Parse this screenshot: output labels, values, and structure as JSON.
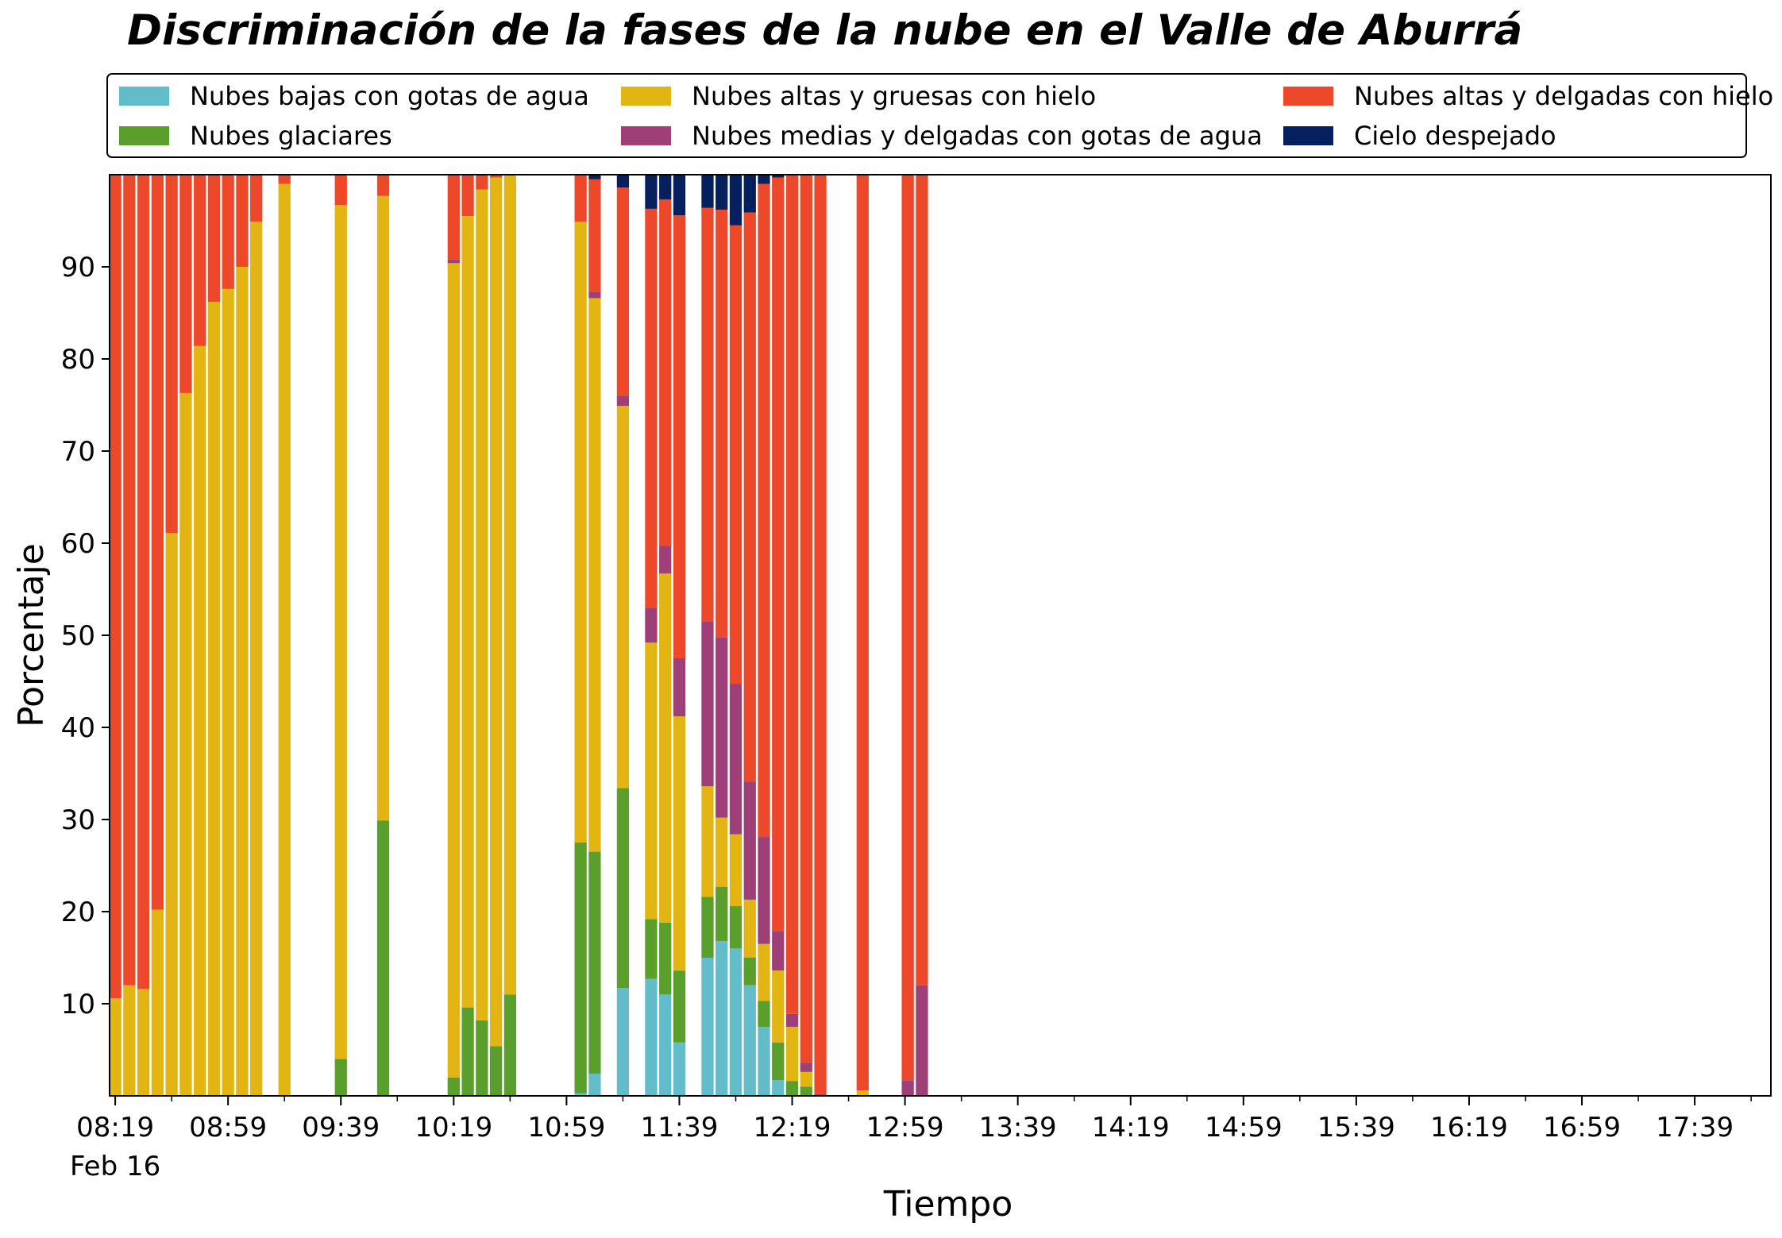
{
  "title": "Discriminación de la fases de la nube en el Valle de Aburrá",
  "colors": {
    "Nubes bajas con gotas de agua": "#62bcc9",
    "Nubes glaciares": "#5a9e2b",
    "Nubes altas y gruesas con hielo": "#e2b512",
    "Nubes medias y delgadas con gotas de agua": "#9e3f78",
    "Nubes altas y delgadas con hielo": "#ee482a",
    "Cielo despejado": "#06205e"
  },
  "chart_data": {
    "type": "bar",
    "stacked": true,
    "xlabel": "Tiempo",
    "ylabel": "Porcentaje",
    "ylim": [
      0,
      100
    ],
    "yticks": [
      10,
      20,
      30,
      40,
      50,
      60,
      70,
      80,
      90
    ],
    "date_label": "Feb 16",
    "xtick_labels": [
      "08:19",
      "08:59",
      "09:39",
      "10:19",
      "10:59",
      "11:39",
      "12:19",
      "12:59",
      "13:39",
      "14:19",
      "14:59",
      "15:39",
      "16:19",
      "16:59",
      "17:39"
    ],
    "xtick_times": [
      "08:19",
      "08:59",
      "09:39",
      "10:19",
      "10:59",
      "11:39",
      "12:19",
      "12:59",
      "13:39",
      "14:19",
      "14:59",
      "15:39",
      "16:19",
      "16:59",
      "17:39"
    ],
    "minor_tick_times": [
      "08:39",
      "09:19",
      "09:59",
      "10:39",
      "11:19",
      "11:59",
      "12:39",
      "13:19",
      "13:59",
      "14:39",
      "15:19",
      "15:59",
      "16:39",
      "17:19",
      "17:59"
    ],
    "x_start": "08:17",
    "x_end": "18:06",
    "legend_placement": "top, above plot, 3 columns",
    "series_order": [
      "Nubes bajas con gotas de agua",
      "Nubes glaciares",
      "Nubes altas y gruesas con hielo",
      "Nubes medias y delgadas con gotas de agua",
      "Nubes altas y delgadas con hielo",
      "Cielo despejado"
    ],
    "bars": [
      {
        "time": "08:19",
        "values": [
          0,
          0,
          10.6,
          0,
          89.4,
          0
        ]
      },
      {
        "time": "08:24",
        "values": [
          0,
          0,
          12.0,
          0,
          88.0,
          0
        ]
      },
      {
        "time": "08:29",
        "values": [
          0,
          0,
          11.6,
          0,
          88.4,
          0
        ]
      },
      {
        "time": "08:34",
        "values": [
          0,
          0,
          20.2,
          0,
          79.8,
          0
        ]
      },
      {
        "time": "08:39",
        "values": [
          0,
          0,
          61.1,
          0,
          38.9,
          0
        ]
      },
      {
        "time": "08:44",
        "values": [
          0,
          0,
          76.3,
          0,
          23.7,
          0
        ]
      },
      {
        "time": "08:49",
        "values": [
          0,
          0,
          81.4,
          0,
          18.6,
          0
        ]
      },
      {
        "time": "08:54",
        "values": [
          0,
          0,
          86.2,
          0,
          13.8,
          0
        ]
      },
      {
        "time": "08:59",
        "values": [
          0,
          0,
          87.6,
          0,
          12.4,
          0
        ]
      },
      {
        "time": "09:04",
        "values": [
          0,
          0,
          90.0,
          0,
          10.0,
          0
        ]
      },
      {
        "time": "09:09",
        "values": [
          0,
          0,
          94.9,
          0,
          5.1,
          0
        ]
      },
      {
        "time": "09:19",
        "values": [
          0,
          0,
          99.0,
          0,
          1.0,
          0
        ]
      },
      {
        "time": "09:39",
        "values": [
          0,
          4.0,
          92.7,
          0,
          3.3,
          0
        ]
      },
      {
        "time": "09:54",
        "values": [
          0,
          29.9,
          67.8,
          0,
          2.3,
          0
        ]
      },
      {
        "time": "10:19",
        "values": [
          0,
          2.0,
          88.4,
          0.4,
          9.2,
          0
        ]
      },
      {
        "time": "10:24",
        "values": [
          0,
          9.6,
          85.9,
          0,
          4.5,
          0
        ]
      },
      {
        "time": "10:29",
        "values": [
          0,
          8.2,
          90.2,
          0,
          1.6,
          0
        ]
      },
      {
        "time": "10:34",
        "values": [
          0,
          5.4,
          94.3,
          0,
          0.3,
          0
        ]
      },
      {
        "time": "10:39",
        "values": [
          0,
          11.0,
          89.0,
          0,
          0,
          0
        ]
      },
      {
        "time": "11:04",
        "values": [
          0.3,
          27.2,
          67.4,
          0,
          5.1,
          0
        ]
      },
      {
        "time": "11:09",
        "values": [
          2.4,
          24.1,
          60.1,
          0.7,
          12.2,
          0.5
        ]
      },
      {
        "time": "11:19",
        "values": [
          11.7,
          21.7,
          41.5,
          1.1,
          22.6,
          1.4
        ]
      },
      {
        "time": "11:29",
        "values": [
          12.7,
          6.5,
          30.0,
          3.8,
          43.3,
          3.7
        ]
      },
      {
        "time": "11:34",
        "values": [
          11.0,
          7.8,
          37.9,
          3.0,
          37.6,
          2.7
        ]
      },
      {
        "time": "11:39",
        "values": [
          5.8,
          7.8,
          27.6,
          6.3,
          48.1,
          4.4
        ]
      },
      {
        "time": "11:49",
        "values": [
          15.0,
          6.6,
          12.0,
          17.9,
          44.9,
          3.6
        ]
      },
      {
        "time": "11:54",
        "values": [
          16.8,
          5.9,
          7.5,
          19.6,
          46.4,
          3.8
        ]
      },
      {
        "time": "11:59",
        "values": [
          16.0,
          4.6,
          7.8,
          16.3,
          49.8,
          5.5
        ]
      },
      {
        "time": "12:04",
        "values": [
          12.0,
          3.0,
          6.3,
          12.8,
          61.8,
          4.1
        ]
      },
      {
        "time": "12:09",
        "values": [
          7.5,
          2.8,
          6.2,
          11.6,
          70.9,
          1.0
        ]
      },
      {
        "time": "12:14",
        "values": [
          1.7,
          4.1,
          7.8,
          4.3,
          81.8,
          0.3
        ]
      },
      {
        "time": "12:19",
        "values": [
          0,
          1.6,
          5.9,
          1.4,
          91.1,
          0
        ]
      },
      {
        "time": "12:24",
        "values": [
          0,
          1.0,
          1.6,
          1.0,
          96.4,
          0
        ]
      },
      {
        "time": "12:29",
        "values": [
          0,
          0,
          0,
          0.2,
          99.8,
          0
        ]
      },
      {
        "time": "12:44",
        "values": [
          0,
          0,
          0.6,
          0,
          99.4,
          0
        ]
      },
      {
        "time": "13:00",
        "values": [
          0,
          0,
          0,
          1.7,
          98.3,
          0
        ]
      },
      {
        "time": "13:05",
        "values": [
          0,
          0,
          0,
          12.0,
          88.0,
          0
        ]
      }
    ]
  }
}
